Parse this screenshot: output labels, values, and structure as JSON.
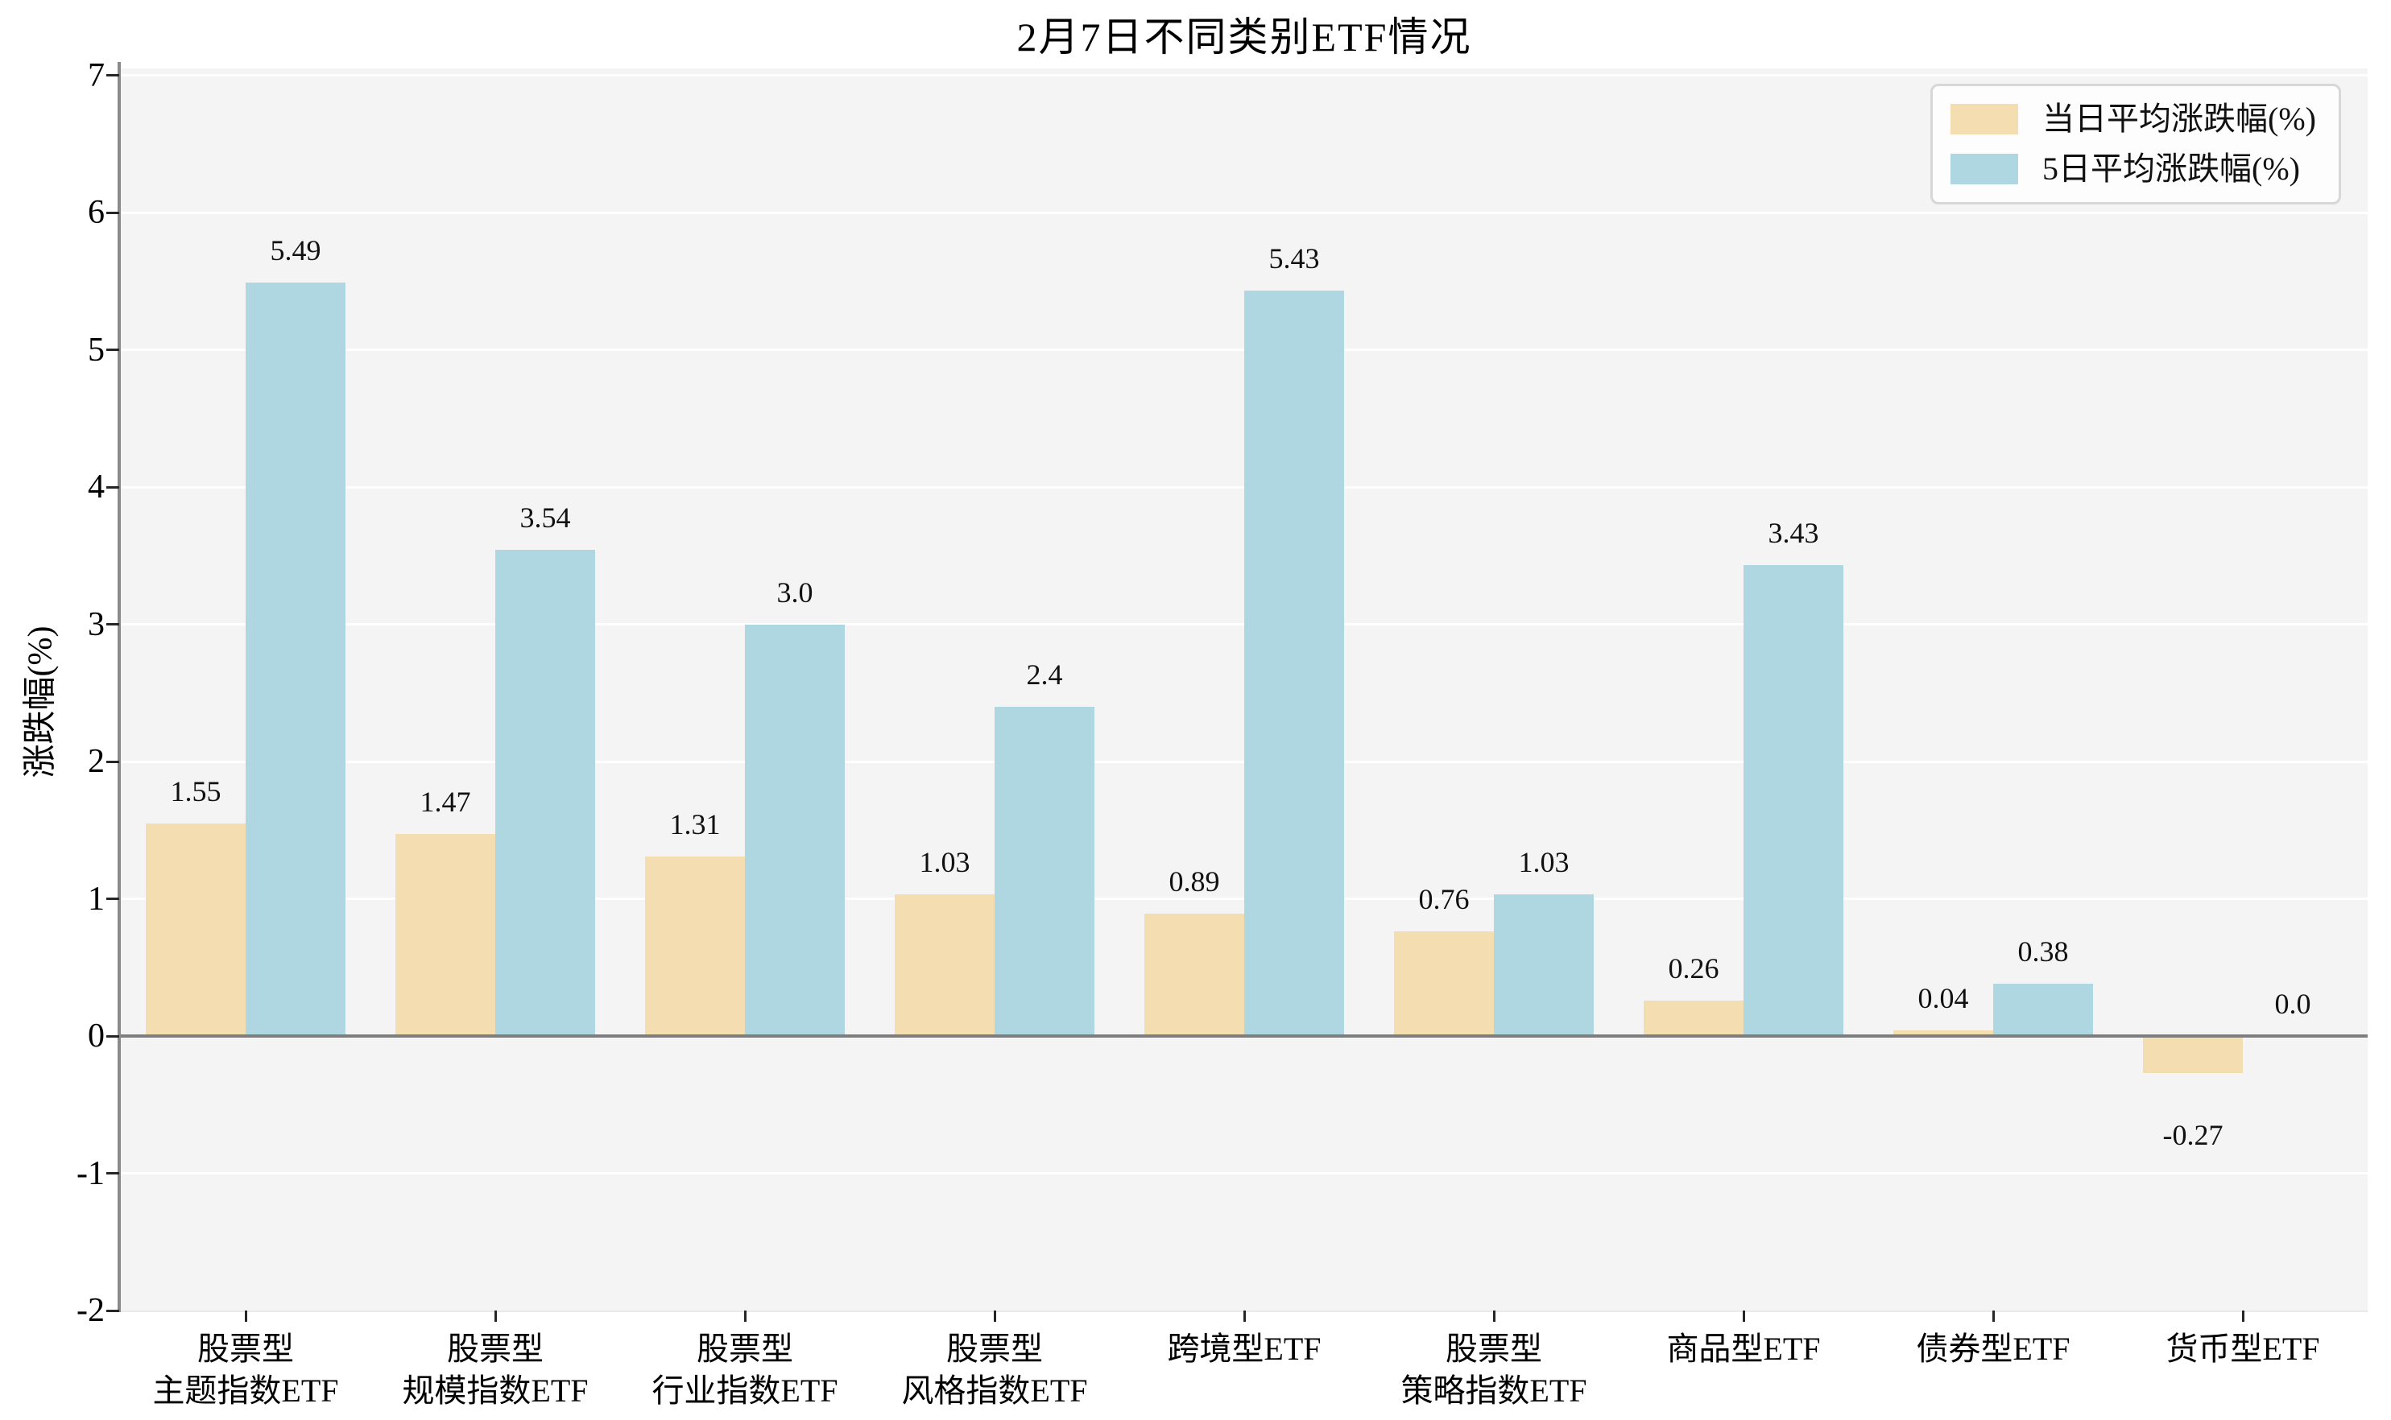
{
  "title": "2月7日不同类别ETF情况",
  "ylabel": "涨跌幅(%)",
  "colors": {
    "daily": "#f3ddb1",
    "five_day": "#aed7e2",
    "zero_axis_line": "#7e7e7e",
    "plot_background": "#f4f4f5",
    "gridline": "#ffffff",
    "spine": "#8a8a8a"
  },
  "legend": [
    {
      "label": "当日平均涨跌幅(%)",
      "color": "#f3ddb1"
    },
    {
      "label": "5日平均涨跌幅(%)",
      "color": "#aed7e2"
    }
  ],
  "chart_data": {
    "type": "bar",
    "title": "2月7日不同类别ETF情况",
    "xlabel": "",
    "ylabel": "涨跌幅(%)",
    "ylim": [
      -2,
      7
    ],
    "yticks": [
      7,
      6,
      5,
      4,
      3,
      2,
      1,
      0,
      -1,
      -2
    ],
    "grid": true,
    "legend_position": "upper right",
    "categories": [
      [
        "股票型",
        "主题指数ETF"
      ],
      [
        "股票型",
        "规模指数ETF"
      ],
      [
        "股票型",
        "行业指数ETF"
      ],
      [
        "股票型",
        "风格指数ETF"
      ],
      [
        "跨境型ETF"
      ],
      [
        "股票型",
        "策略指数ETF"
      ],
      [
        "商品型ETF"
      ],
      [
        "债券型ETF"
      ],
      [
        "货币型ETF"
      ]
    ],
    "series": [
      {
        "name": "当日平均涨跌幅(%)",
        "color": "#f3ddb1",
        "values": [
          1.55,
          1.47,
          1.31,
          1.03,
          0.89,
          0.76,
          0.26,
          0.04,
          -0.27
        ],
        "labels": [
          "1.55",
          "1.47",
          "1.31",
          "1.03",
          "0.89",
          "0.76",
          "0.26",
          "0.04",
          "-0.27"
        ]
      },
      {
        "name": "5日平均涨跌幅(%)",
        "color": "#aed7e2",
        "values": [
          5.49,
          3.54,
          3.0,
          2.4,
          5.43,
          1.03,
          3.43,
          0.38,
          0.0
        ],
        "labels": [
          "5.49",
          "3.54",
          "3.0",
          "2.4",
          "5.43",
          "1.03",
          "3.43",
          "0.38",
          "0.0"
        ]
      }
    ]
  }
}
